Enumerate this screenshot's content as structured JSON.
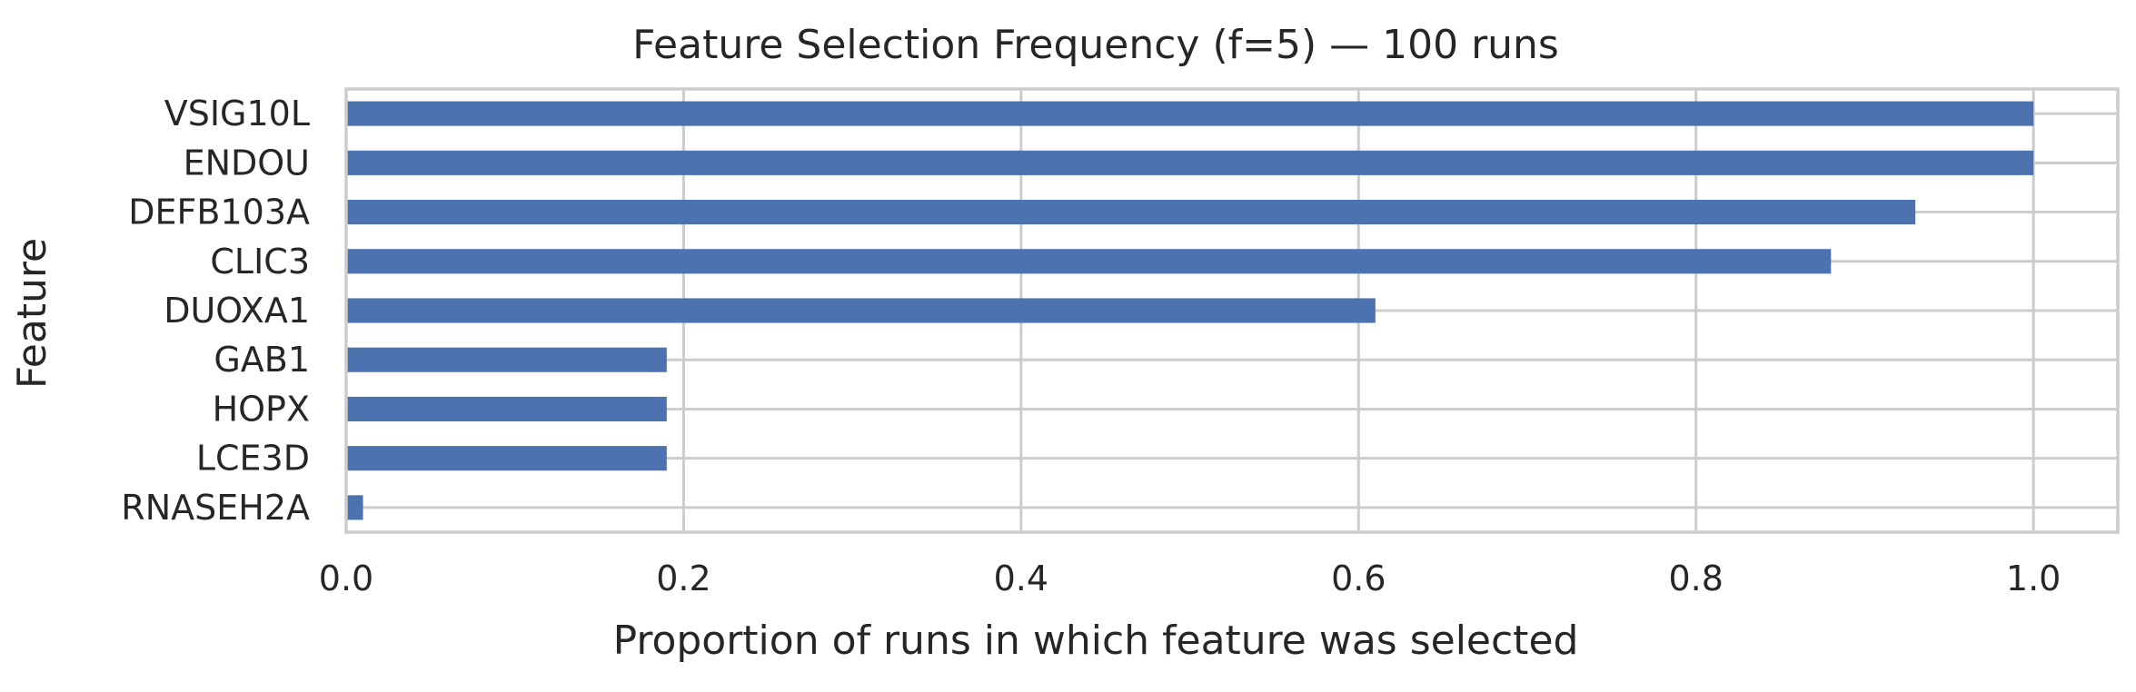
{
  "chart_data": {
    "type": "bar",
    "orientation": "horizontal",
    "title": "Feature Selection Frequency (f=5) — 100 runs",
    "xlabel": "Proportion of runs in which feature was selected",
    "ylabel": "Feature",
    "categories": [
      "VSIG10L",
      "ENDOU",
      "DEFB103A",
      "CLIC3",
      "DUOXA1",
      "GAB1",
      "HOPX",
      "LCE3D",
      "RNASEH2A"
    ],
    "values": [
      1.0,
      1.0,
      0.93,
      0.88,
      0.61,
      0.19,
      0.19,
      0.19,
      0.01
    ],
    "xlim": [
      0,
      1.05
    ],
    "xticks": [
      "0.0",
      "0.2",
      "0.4",
      "0.6",
      "0.8",
      "1.0"
    ],
    "grid": true,
    "bar_color": "#4c72b0",
    "grid_color": "#cccccc",
    "spine_color": "#cccccc"
  }
}
